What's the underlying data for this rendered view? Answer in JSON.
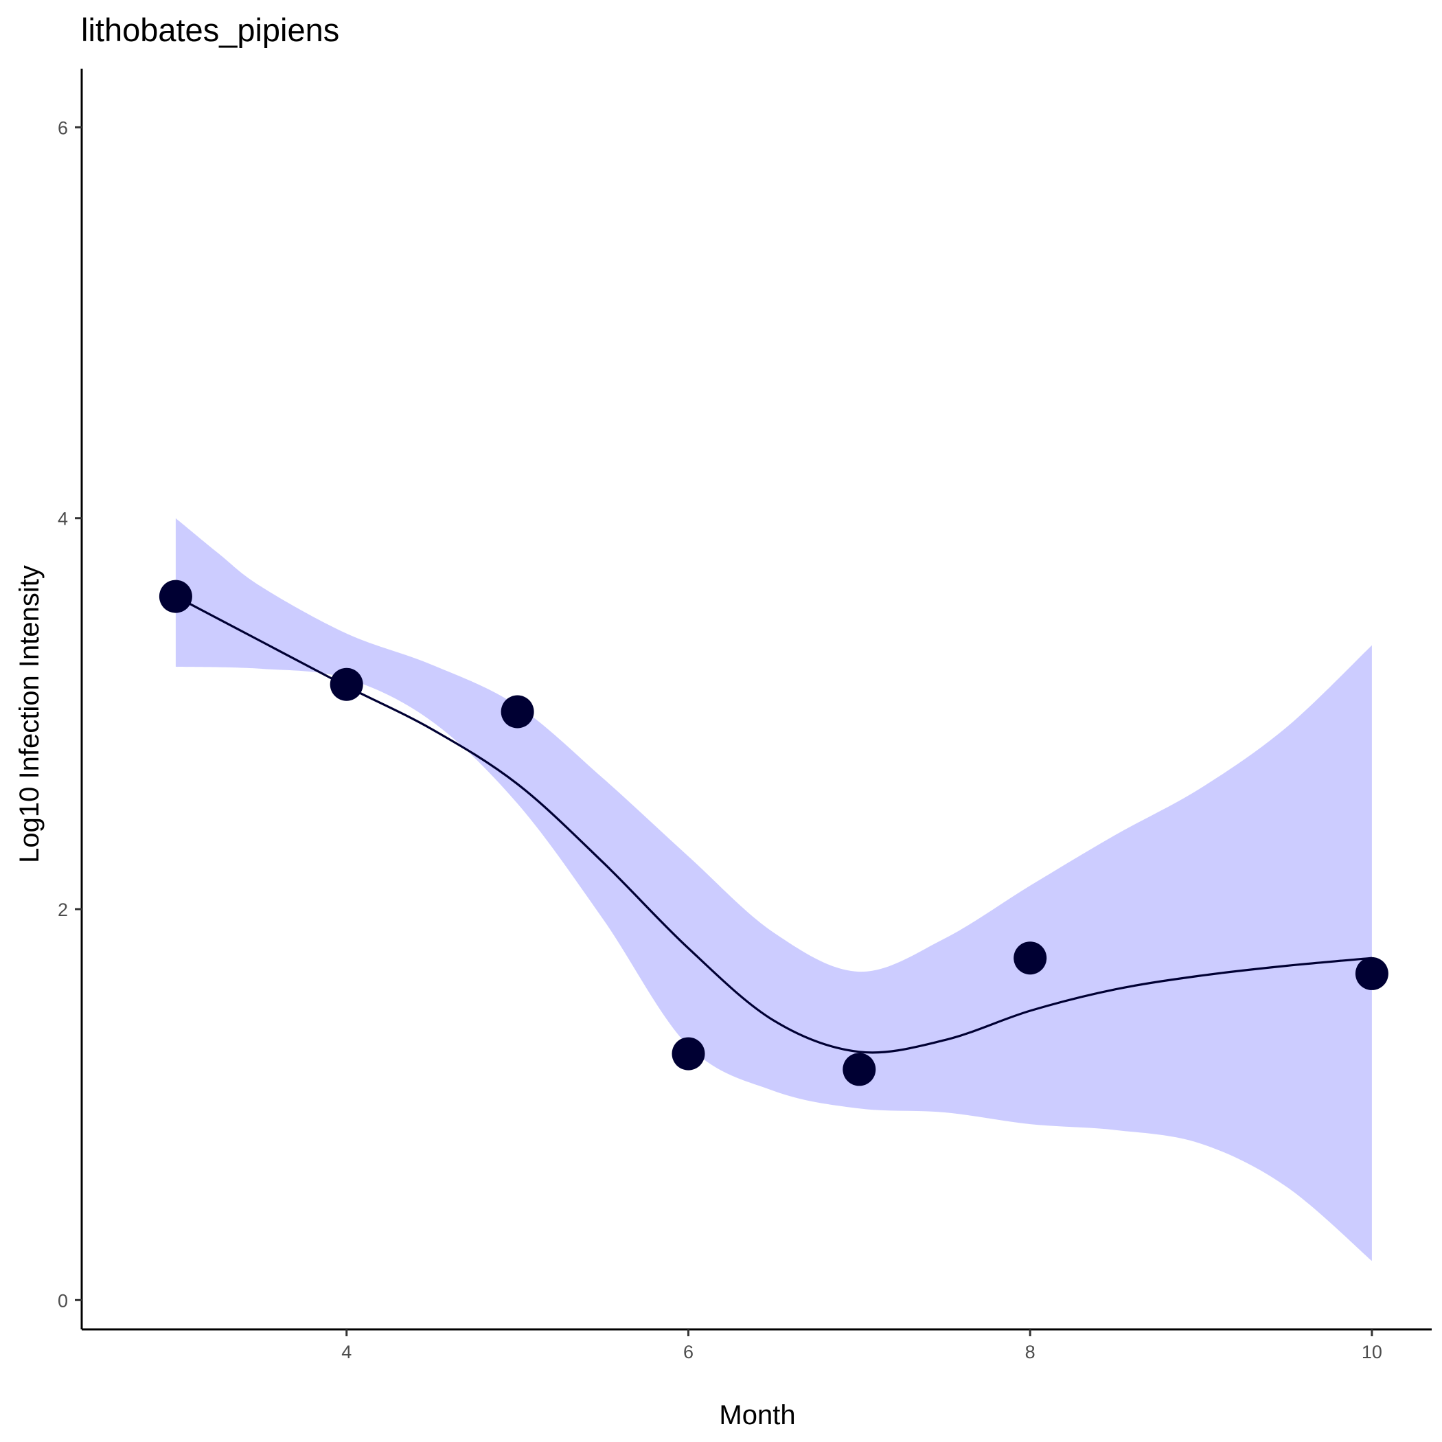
{
  "chart_data": {
    "type": "scatter",
    "title": "lithobates_pipiens",
    "xlabel": "Month",
    "ylabel": "Log10 Infection Intensity",
    "xlim": [
      2.45,
      10.35
    ],
    "ylim": [
      -0.15,
      6.3
    ],
    "x_ticks": [
      4,
      6,
      8,
      10
    ],
    "y_ticks": [
      0,
      2,
      4,
      6
    ],
    "grid": false,
    "legend": "none",
    "colors": {
      "points": "#000033",
      "line": "#000033",
      "ribbon": "#ccccff",
      "axis": "#000000"
    },
    "points": [
      {
        "x": 3,
        "y": 3.6
      },
      {
        "x": 4,
        "y": 3.15
      },
      {
        "x": 5,
        "y": 3.01
      },
      {
        "x": 6,
        "y": 1.26
      },
      {
        "x": 7,
        "y": 1.18
      },
      {
        "x": 8,
        "y": 1.75
      },
      {
        "x": 10,
        "y": 1.67
      }
    ],
    "smooth": [
      {
        "x": 3.0,
        "y": 3.6
      },
      {
        "x": 3.5,
        "y": 3.37
      },
      {
        "x": 4.0,
        "y": 3.14
      },
      {
        "x": 4.5,
        "y": 2.92
      },
      {
        "x": 5.0,
        "y": 2.64
      },
      {
        "x": 5.5,
        "y": 2.24
      },
      {
        "x": 6.0,
        "y": 1.8
      },
      {
        "x": 6.5,
        "y": 1.43
      },
      {
        "x": 7.0,
        "y": 1.27
      },
      {
        "x": 7.5,
        "y": 1.33
      },
      {
        "x": 8.0,
        "y": 1.48
      },
      {
        "x": 8.5,
        "y": 1.59
      },
      {
        "x": 9.0,
        "y": 1.66
      },
      {
        "x": 9.5,
        "y": 1.71
      },
      {
        "x": 10.0,
        "y": 1.75
      }
    ],
    "ribbon_upper": [
      {
        "x": 3.0,
        "y": 4.0
      },
      {
        "x": 3.25,
        "y": 3.82
      },
      {
        "x": 3.5,
        "y": 3.65
      },
      {
        "x": 4.0,
        "y": 3.41
      },
      {
        "x": 4.5,
        "y": 3.25
      },
      {
        "x": 5.0,
        "y": 3.04
      },
      {
        "x": 5.5,
        "y": 2.67
      },
      {
        "x": 6.0,
        "y": 2.27
      },
      {
        "x": 6.5,
        "y": 1.88
      },
      {
        "x": 7.0,
        "y": 1.68
      },
      {
        "x": 7.5,
        "y": 1.85
      },
      {
        "x": 8.0,
        "y": 2.12
      },
      {
        "x": 8.5,
        "y": 2.38
      },
      {
        "x": 9.0,
        "y": 2.62
      },
      {
        "x": 9.5,
        "y": 2.93
      },
      {
        "x": 10.0,
        "y": 3.35
      }
    ],
    "ribbon_lower": [
      {
        "x": 10.0,
        "y": 0.2
      },
      {
        "x": 9.5,
        "y": 0.58
      },
      {
        "x": 9.0,
        "y": 0.8
      },
      {
        "x": 8.5,
        "y": 0.87
      },
      {
        "x": 8.0,
        "y": 0.9
      },
      {
        "x": 7.5,
        "y": 0.96
      },
      {
        "x": 7.0,
        "y": 0.98
      },
      {
        "x": 6.5,
        "y": 1.07
      },
      {
        "x": 6.0,
        "y": 1.3
      },
      {
        "x": 5.5,
        "y": 1.95
      },
      {
        "x": 5.0,
        "y": 2.54
      },
      {
        "x": 4.5,
        "y": 2.96
      },
      {
        "x": 4.0,
        "y": 3.18
      },
      {
        "x": 3.5,
        "y": 3.23
      },
      {
        "x": 3.0,
        "y": 3.24
      }
    ]
  }
}
